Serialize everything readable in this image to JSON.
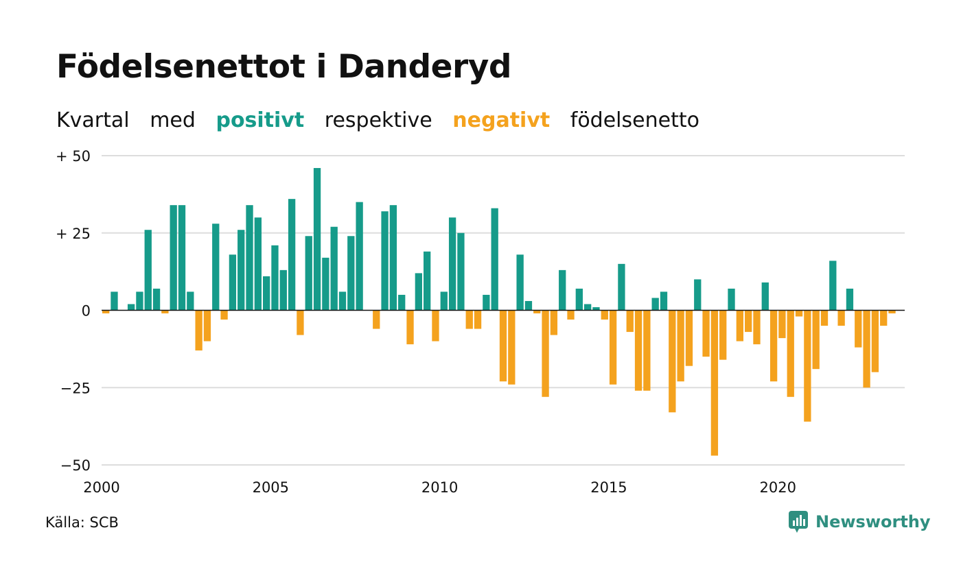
{
  "title": "Födelsenettot i Danderyd",
  "subtitle": {
    "part1": "Kvartal",
    "part2": "med",
    "positive_word": "positivt",
    "part3": "respektive",
    "negative_word": "negativt",
    "part4": "födelsenetto"
  },
  "colors": {
    "positive": "#169b8a",
    "negative": "#f4a21e",
    "grid": "#dddddd",
    "zero_line": "#111111"
  },
  "source": "Källa: SCB",
  "brand": {
    "name": "Newsworthy",
    "icon": "newsworthy-logo-icon",
    "color": "#2f8f80"
  },
  "chart_data": {
    "type": "bar",
    "title": "Födelsenettot i Danderyd",
    "ylim": [
      -50,
      50
    ],
    "xlim": [
      2000,
      2023.75
    ],
    "yticks": [
      {
        "value": 50,
        "label": "+ 50"
      },
      {
        "value": 25,
        "label": "+ 25"
      },
      {
        "value": 0,
        "label": "0"
      },
      {
        "value": -25,
        "label": "−25"
      },
      {
        "value": -50,
        "label": "−50"
      }
    ],
    "xticks": [
      2000,
      2005,
      2010,
      2015,
      2020
    ],
    "grid": true,
    "legend": "none",
    "series": [
      {
        "start": "2000 Q1",
        "frequency": "quarterly",
        "values": [
          -1,
          6,
          0,
          2,
          6,
          26,
          7,
          -1,
          34,
          34,
          6,
          -13,
          -10,
          28,
          -3,
          18,
          26,
          34,
          30,
          11,
          21,
          13,
          36,
          -8,
          24,
          46,
          17,
          27,
          6,
          24,
          35,
          0,
          -6,
          32,
          34,
          5,
          -11,
          12,
          19,
          -10,
          6,
          30,
          25,
          -6,
          -6,
          5,
          33,
          -23,
          -24,
          18,
          3,
          -1,
          -28,
          -8,
          13,
          -3,
          7,
          2,
          1,
          -3,
          -24,
          15,
          -7,
          -26,
          -26,
          4,
          6,
          -33,
          -23,
          -18,
          10,
          -15,
          -47,
          -16,
          7,
          -10,
          -7,
          -11,
          9,
          -23,
          -9,
          -28,
          -2,
          -36,
          -19,
          -5,
          16,
          -5,
          7,
          -12,
          -25,
          -20,
          -5,
          -1
        ]
      }
    ]
  }
}
